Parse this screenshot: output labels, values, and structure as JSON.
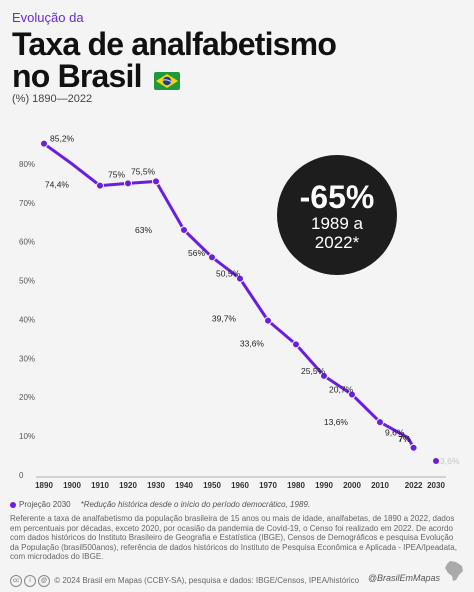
{
  "header": {
    "eyebrow": "Evolução da",
    "title_line1": "Taxa de analfabetismo",
    "title_line2": "no Brasil",
    "unit_label": "(%) 1890—2022"
  },
  "badge": {
    "value": "-65%",
    "line1": "1989 a",
    "line2": "2022*"
  },
  "colors": {
    "accent": "#6a1ee0",
    "eyebrow": "#6a2bd6",
    "badge_bg": "#1d1d1d",
    "projection": "#c8c8c8"
  },
  "chart_data": {
    "type": "line",
    "x": [
      1890,
      1900,
      1910,
      1920,
      1930,
      1940,
      1950,
      1960,
      1970,
      1980,
      1990,
      2000,
      2010,
      2020,
      2022,
      2030
    ],
    "y": [
      85.2,
      80,
      74.4,
      75,
      75.5,
      63,
      56,
      50.5,
      39.7,
      33.6,
      25.5,
      20.7,
      13.6,
      9.6,
      7,
      3.6
    ],
    "point_labels": [
      {
        "x": 1890,
        "y": 85.2,
        "text": "85,2%"
      },
      {
        "x": 1900,
        "y": 74.4,
        "text": "74,4%"
      },
      {
        "x": 1910,
        "y": 75,
        "text": "75%"
      },
      {
        "x": 1920,
        "y": 75.5,
        "text": "75,5%"
      },
      {
        "x": 1930,
        "y": 63,
        "text": "63%"
      },
      {
        "x": 1940,
        "y": 56,
        "text": "56%"
      },
      {
        "x": 1950,
        "y": 50.5,
        "text": "50,5%"
      },
      {
        "x": 1960,
        "y": 39.7,
        "text": "39,7%"
      },
      {
        "x": 1970,
        "y": 33.6,
        "text": "33,6%"
      },
      {
        "x": 1980,
        "y": 25.5,
        "text": "25,5%"
      },
      {
        "x": 1990,
        "y": 20.7,
        "text": "20,7%"
      },
      {
        "x": 2000,
        "y": 13.6,
        "text": "13,6%"
      },
      {
        "x": 2010,
        "y": 9.6,
        "text": "9,6%"
      },
      {
        "x": 2022,
        "y": 7,
        "text": "7%"
      },
      {
        "x": 2030,
        "y": 3.6,
        "text": "3,6%"
      }
    ],
    "x_ticks": [
      "1890",
      "1900",
      "1910",
      "1920",
      "1930",
      "1940",
      "1950",
      "1960",
      "1970",
      "1980",
      "1990",
      "2000",
      "2010",
      "2022",
      "2030"
    ],
    "y_ticks": [
      "80%",
      "70%",
      "60%",
      "50%",
      "40%",
      "30%",
      "20%",
      "10%",
      "0"
    ],
    "ylim": [
      0,
      90
    ],
    "grid": false
  },
  "legend": {
    "projection_label": "Projeção 2030",
    "note": "*Redução histórica desde o início do período democrático, 1989."
  },
  "description": "Referente a taxa de analfabetismo da população brasileira de 15 anos ou mais de idade, analfabetas, de 1890 a 2022, dados em percentuais por décadas, exceto 2020, por ocasião da pandemia de Covid-19, o Censo foi realizado em 2022. De acordo com dados históricos do Instituto Brasileiro de Geografia e Estatística (IBGE), Censos de Demográficos e pesquisa Evolução da População (brasil500anos), referência de dados históricos do Instituto de Pesquisa Econômica e Aplicada - IPEA/Ipeadata, com microdados do IBGE.",
  "footer": {
    "copyright": "© 2024 Brasil em Mapas (CCBY-SA), pesquisa e dados: IBGE/Censos, IPEA/histórico",
    "handle": "@BrasilEmMapas"
  }
}
